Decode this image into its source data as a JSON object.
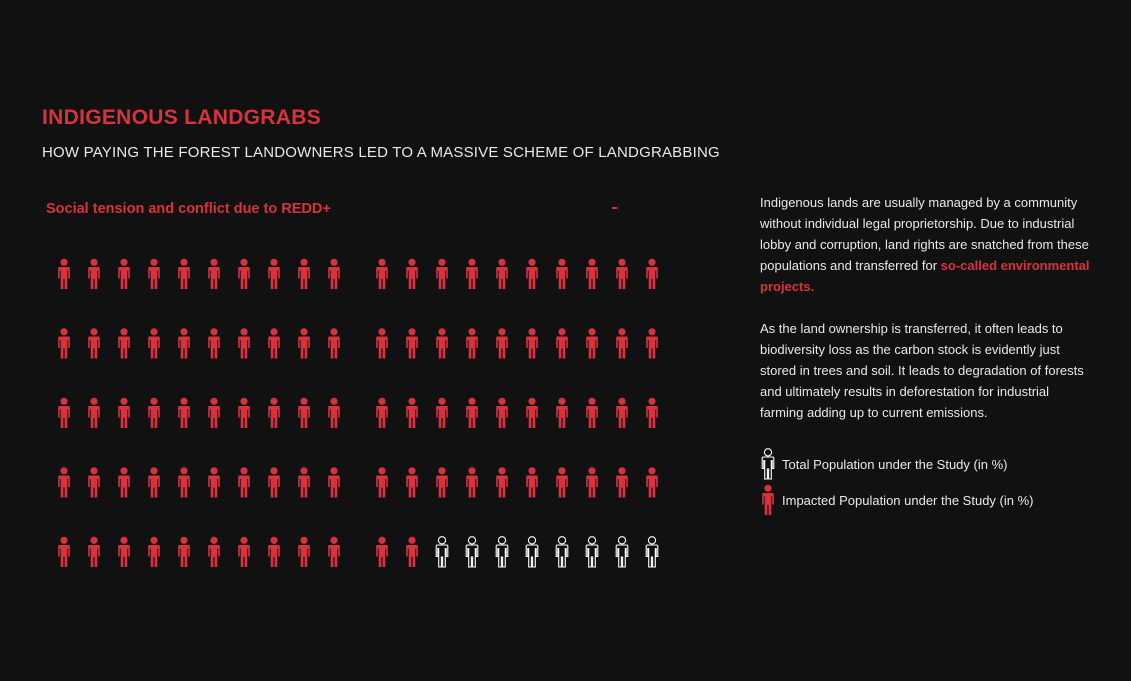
{
  "title": "INDIGENOUS LANDGRABS",
  "subtitle": "HOW PAYING THE FOREST LANDOWNERS LED TO A MASSIVE SCHEME OF LANDGRABBING",
  "section_label": "Social tension and conflict due to REDD+",
  "description": {
    "p1_text": "Indigenous lands are usually managed by a community without individual legal proprietorship. Due to industrial lobby and corruption, land rights are snatched from these populations and transferred for ",
    "p1_highlight": "so-called environmental projects.",
    "p2_text": "As the land ownership is transferred, it often leads to biodiversity loss as the carbon stock is evidently just stored in trees and soil. It leads to degradation of forests and ultimately results in deforestation for industrial farming adding up to current emissions."
  },
  "legend": {
    "total_label": "Total Population under the Study (in %)",
    "impacted_label": "Impacted Population under the Study (in %)",
    "total_icon": "person-outline-icon",
    "impacted_icon": "person-filled-icon"
  },
  "colors": {
    "accent": "#d8323f",
    "background": "#111111",
    "outline": "#ffffff",
    "text": "#e9e9e9"
  },
  "chart_data": {
    "type": "pictogram",
    "unit": "%",
    "total": 100,
    "impacted": 92,
    "groups": [
      {
        "filled": 50,
        "total": 50
      },
      {
        "filled": 42,
        "total": 50
      }
    ],
    "columns_per_group": 10,
    "rows": 5
  }
}
